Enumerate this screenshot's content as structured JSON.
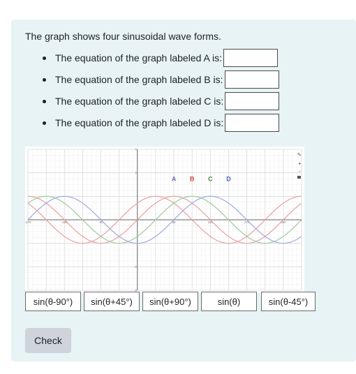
{
  "question": {
    "prompt": "The graph shows four sinusoidal wave forms.",
    "items": [
      {
        "label": "The equation of the graph labeled A is:"
      },
      {
        "label": "The equation of the graph labeled B is:"
      },
      {
        "label": "The equation of the graph labeled C is:"
      },
      {
        "label": "The equation of the graph labeled D is:"
      }
    ]
  },
  "chart_data": {
    "type": "line",
    "x_unit": "degrees",
    "xlim": [
      -270,
      405
    ],
    "ylim": [
      -3,
      3
    ],
    "x_ticks": [
      "-270",
      "-180",
      "-90",
      "90",
      "180",
      "270",
      "360"
    ],
    "y_ticks": [
      "3",
      "2",
      "-2",
      "-3"
    ],
    "grid": true,
    "series": [
      {
        "name": "A",
        "equation_phase_deg": 45,
        "color": "#e57373"
      },
      {
        "name": "B",
        "equation_phase_deg": 0,
        "color": "#e57373"
      },
      {
        "name": "C",
        "equation_phase_deg": -45,
        "color": "#8bbf8b"
      },
      {
        "name": "D",
        "equation_phase_deg": -90,
        "color": "#8f9ad8"
      }
    ],
    "curves": [
      {
        "phase_deg": 45,
        "color": "#e8a0a0"
      },
      {
        "phase_deg": 0,
        "color": "#e8a0a0"
      },
      {
        "phase_deg": -45,
        "color": "#9ccb9c"
      },
      {
        "phase_deg": -90,
        "color": "#9fa9dd"
      }
    ],
    "labels": [
      {
        "text": "A",
        "x": 90,
        "y": 1.65,
        "color": "#7a62c4"
      },
      {
        "text": "B",
        "x": 135,
        "y": 1.65,
        "color": "#d04a3a"
      },
      {
        "text": "C",
        "x": 180,
        "y": 1.65,
        "color": "#3f8a3f"
      },
      {
        "text": "D",
        "x": 225,
        "y": 1.65,
        "color": "#3d62c8"
      }
    ]
  },
  "choices": [
    "sin(θ-90°)",
    "sin(θ+45°)",
    "sin(θ+90°)",
    "sin(θ)",
    "sin(θ-45°)"
  ],
  "check_label": "Check"
}
